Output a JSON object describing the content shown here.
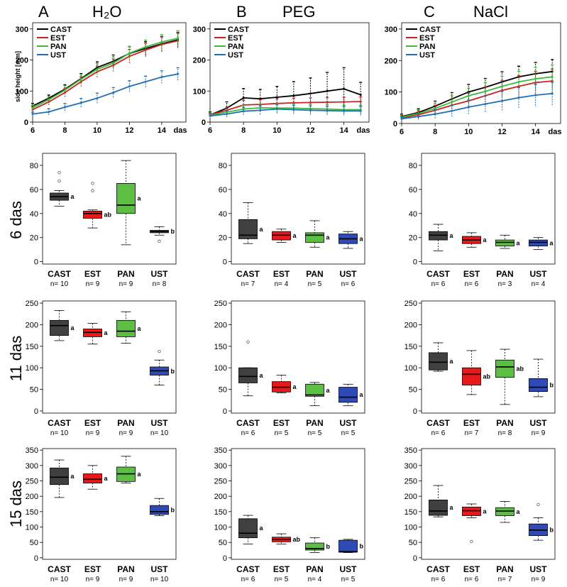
{
  "figure": {
    "columns": [
      {
        "letter": "A",
        "label": "H₂O"
      },
      {
        "letter": "B",
        "label": "PEG"
      },
      {
        "letter": "C",
        "label": "NaCl"
      }
    ],
    "rows": [
      "6 das",
      "11 das",
      "15 das"
    ]
  },
  "colors": {
    "CAST": "#000000",
    "EST": "#cc1f1f",
    "PAN": "#3cb93c",
    "UST": "#1f6fb5"
  },
  "box_colors": {
    "CAST": "#404040",
    "EST": "#e8191b",
    "PAN": "#5cbf43",
    "UST": "#2f4ab5"
  },
  "chart_data": [
    {
      "type": "line",
      "panel": "A",
      "title": "H₂O",
      "ylabel": "side height [mm]",
      "xlabel": "das",
      "x": [
        6,
        7,
        8,
        9,
        10,
        11,
        12,
        13,
        14,
        15
      ],
      "xticks": [
        "6",
        "8",
        "10",
        "12",
        "14"
      ],
      "xlim": [
        6,
        15.5
      ],
      "yticks": [
        "0",
        "100",
        "200",
        "300"
      ],
      "ylim": [
        0,
        320
      ],
      "legend": [
        "CAST",
        "EST",
        "PAN",
        "UST"
      ],
      "legend_position": "top-left",
      "series": [
        {
          "name": "CAST",
          "values": [
            52,
            77,
            106,
            140,
            176,
            196,
            221,
            237,
            252,
            265
          ],
          "err": [
            8,
            10,
            14,
            16,
            18,
            20,
            22,
            22,
            24,
            24
          ]
        },
        {
          "name": "EST",
          "values": [
            40,
            65,
            95,
            130,
            162,
            183,
            212,
            232,
            250,
            262
          ],
          "err": [
            8,
            10,
            14,
            16,
            18,
            20,
            22,
            22,
            24,
            24
          ]
        },
        {
          "name": "PAN",
          "values": [
            46,
            72,
            103,
            138,
            170,
            190,
            222,
            242,
            258,
            270
          ],
          "err": [
            8,
            10,
            14,
            16,
            18,
            20,
            22,
            22,
            24,
            24
          ]
        },
        {
          "name": "UST",
          "values": [
            26,
            33,
            48,
            62,
            77,
            95,
            115,
            130,
            145,
            155
          ],
          "err": [
            6,
            10,
            12,
            14,
            16,
            16,
            18,
            18,
            20,
            20
          ]
        }
      ]
    },
    {
      "type": "line",
      "panel": "B",
      "title": "PEG",
      "xlabel": "das",
      "x": [
        6,
        7,
        8,
        9,
        10,
        11,
        12,
        13,
        14,
        15
      ],
      "xticks": [
        "6",
        "8",
        "10",
        "12",
        "14"
      ],
      "xlim": [
        6,
        15.5
      ],
      "yticks": [
        "0",
        "100",
        "200",
        "300"
      ],
      "ylim": [
        0,
        320
      ],
      "legend": [
        "CAST",
        "EST",
        "PAN",
        "UST"
      ],
      "legend_position": "top-left",
      "series": [
        {
          "name": "CAST",
          "values": [
            23,
            45,
            78,
            75,
            80,
            85,
            92,
            100,
            107,
            88
          ],
          "err": [
            10,
            20,
            30,
            30,
            35,
            45,
            50,
            60,
            68,
            40
          ]
        },
        {
          "name": "EST",
          "values": [
            24,
            38,
            55,
            57,
            60,
            62,
            63,
            64,
            65,
            66
          ],
          "err": [
            8,
            10,
            15,
            15,
            15,
            15,
            15,
            15,
            15,
            15
          ]
        },
        {
          "name": "PAN",
          "values": [
            22,
            32,
            42,
            46,
            45,
            45,
            43,
            42,
            40,
            40
          ],
          "err": [
            8,
            10,
            12,
            12,
            14,
            14,
            14,
            14,
            14,
            14
          ]
        },
        {
          "name": "UST",
          "values": [
            20,
            26,
            35,
            38,
            42,
            40,
            38,
            37,
            36,
            36
          ],
          "err": [
            8,
            10,
            12,
            14,
            14,
            14,
            14,
            14,
            14,
            14
          ]
        }
      ]
    },
    {
      "type": "line",
      "panel": "C",
      "title": "NaCl",
      "xlabel": "das",
      "x": [
        6,
        7,
        8,
        9,
        10,
        11,
        12,
        13,
        14,
        15
      ],
      "xticks": [
        "6",
        "8",
        "10",
        "12",
        "14"
      ],
      "xlim": [
        6,
        15.5
      ],
      "yticks": [
        "0",
        "100",
        "200",
        "300"
      ],
      "ylim": [
        0,
        320
      ],
      "legend": [
        "CAST",
        "EST",
        "PAN",
        "UST"
      ],
      "legend_position": "top-left",
      "series": [
        {
          "name": "CAST",
          "values": [
            22,
            35,
            55,
            78,
            100,
            115,
            132,
            148,
            158,
            165
          ],
          "err": [
            8,
            12,
            16,
            20,
            24,
            28,
            32,
            34,
            36,
            38
          ]
        },
        {
          "name": "EST",
          "values": [
            18,
            28,
            42,
            58,
            72,
            88,
            105,
            118,
            130,
            135
          ],
          "err": [
            8,
            12,
            16,
            20,
            24,
            28,
            32,
            34,
            36,
            38
          ]
        },
        {
          "name": "PAN",
          "values": [
            20,
            32,
            48,
            68,
            88,
            102,
            118,
            132,
            142,
            148
          ],
          "err": [
            8,
            12,
            16,
            20,
            24,
            28,
            32,
            34,
            36,
            38
          ]
        },
        {
          "name": "UST",
          "values": [
            15,
            22,
            30,
            40,
            52,
            62,
            72,
            82,
            90,
            95
          ],
          "err": [
            6,
            10,
            14,
            18,
            22,
            26,
            30,
            32,
            34,
            36
          ]
        }
      ]
    },
    {
      "type": "box",
      "panel": "A",
      "row": "6 das",
      "ylim": [
        -2,
        90
      ],
      "yticks": [
        "0",
        "20",
        "40",
        "60",
        "80"
      ],
      "categories": [
        "CAST",
        "EST",
        "PAN",
        "UST"
      ],
      "n": [
        "n= 10",
        "n= 9",
        "n= 9",
        "n= 8"
      ],
      "letters": [
        "a",
        "ab",
        "a",
        "b"
      ],
      "boxes": [
        {
          "min": 46,
          "q1": 51,
          "median": 54,
          "q3": 57,
          "max": 59,
          "outliers": [
            67,
            74
          ]
        },
        {
          "min": 28,
          "q1": 36,
          "median": 40,
          "q3": 42,
          "max": 43,
          "outliers": [
            59,
            65
          ]
        },
        {
          "min": 14,
          "q1": 40,
          "median": 47,
          "q3": 65,
          "max": 84,
          "outliers": []
        },
        {
          "min": 22,
          "q1": 24,
          "median": 25,
          "q3": 26,
          "max": 29,
          "outliers": [
            17
          ]
        }
      ]
    },
    {
      "type": "box",
      "panel": "B",
      "row": "6 das",
      "ylim": [
        -2,
        90
      ],
      "yticks": [
        "0",
        "20",
        "40",
        "60",
        "80"
      ],
      "categories": [
        "CAST",
        "EST",
        "PAN",
        "UST"
      ],
      "n": [
        "n= 7",
        "n= 4",
        "n= 5",
        "n= 6"
      ],
      "letters": [
        "a",
        "a",
        "a",
        "a"
      ],
      "boxes": [
        {
          "min": 15,
          "q1": 19,
          "median": 22,
          "q3": 35,
          "max": 49,
          "outliers": []
        },
        {
          "min": 16,
          "q1": 18,
          "median": 22,
          "q3": 25,
          "max": 27,
          "outliers": []
        },
        {
          "min": 12,
          "q1": 16,
          "median": 22,
          "q3": 24,
          "max": 34,
          "outliers": []
        },
        {
          "min": 11,
          "q1": 15,
          "median": 19,
          "q3": 23,
          "max": 25,
          "outliers": []
        }
      ]
    },
    {
      "type": "box",
      "panel": "C",
      "row": "6 das",
      "ylim": [
        -2,
        90
      ],
      "yticks": [
        "0",
        "20",
        "40",
        "60",
        "80"
      ],
      "categories": [
        "CAST",
        "EST",
        "PAN",
        "UST"
      ],
      "n": [
        "n= 6",
        "n= 6",
        "n= 3",
        "n= 4"
      ],
      "letters": [
        "a",
        "a",
        "a",
        "a"
      ],
      "boxes": [
        {
          "min": 9,
          "q1": 18,
          "median": 22,
          "q3": 25,
          "max": 31,
          "outliers": []
        },
        {
          "min": 12,
          "q1": 15,
          "median": 18,
          "q3": 21,
          "max": 24,
          "outliers": []
        },
        {
          "min": 11,
          "q1": 13,
          "median": 16,
          "q3": 18,
          "max": 22,
          "outliers": []
        },
        {
          "min": 10,
          "q1": 13,
          "median": 16,
          "q3": 18,
          "max": 20,
          "outliers": []
        }
      ]
    },
    {
      "type": "box",
      "panel": "A",
      "row": "11 das",
      "ylim": [
        -5,
        255
      ],
      "yticks": [
        "0",
        "50",
        "100",
        "150",
        "200",
        "250"
      ],
      "categories": [
        "CAST",
        "EST",
        "PAN",
        "UST"
      ],
      "n": [
        "n= 10",
        "n= 9",
        "n= 9",
        "n= 10"
      ],
      "letters": [
        "a",
        "a",
        "a",
        "b"
      ],
      "boxes": [
        {
          "min": 163,
          "q1": 175,
          "median": 198,
          "q3": 210,
          "max": 233,
          "outliers": []
        },
        {
          "min": 155,
          "q1": 172,
          "median": 182,
          "q3": 190,
          "max": 203,
          "outliers": []
        },
        {
          "min": 157,
          "q1": 172,
          "median": 185,
          "q3": 210,
          "max": 230,
          "outliers": []
        },
        {
          "min": 60,
          "q1": 83,
          "median": 93,
          "q3": 102,
          "max": 118,
          "outliers": [
            138
          ]
        }
      ]
    },
    {
      "type": "box",
      "panel": "B",
      "row": "11 das",
      "ylim": [
        -5,
        255
      ],
      "yticks": [
        "0",
        "50",
        "100",
        "150",
        "200",
        "250"
      ],
      "categories": [
        "CAST",
        "EST",
        "PAN",
        "UST"
      ],
      "n": [
        "n= 6",
        "n= 5",
        "n= 5",
        "n= 5"
      ],
      "letters": [
        "a",
        "a",
        "a",
        "a"
      ],
      "boxes": [
        {
          "min": 35,
          "q1": 65,
          "median": 80,
          "q3": 100,
          "max": 100,
          "outliers": [
            160
          ]
        },
        {
          "min": 42,
          "q1": 44,
          "median": 55,
          "q3": 68,
          "max": 83,
          "outliers": []
        },
        {
          "min": 12,
          "q1": 34,
          "median": 37,
          "q3": 62,
          "max": 66,
          "outliers": []
        },
        {
          "min": 12,
          "q1": 20,
          "median": 32,
          "q3": 55,
          "max": 62,
          "outliers": []
        }
      ]
    },
    {
      "type": "box",
      "panel": "C",
      "row": "11 das",
      "ylim": [
        -5,
        255
      ],
      "yticks": [
        "0",
        "50",
        "100",
        "150",
        "200",
        "250"
      ],
      "categories": [
        "CAST",
        "EST",
        "PAN",
        "UST"
      ],
      "n": [
        "n= 6",
        "n= 7",
        "n= 8",
        "n= 9"
      ],
      "letters": [
        "a",
        "ab",
        "ab",
        "b"
      ],
      "boxes": [
        {
          "min": 92,
          "q1": 95,
          "median": 113,
          "q3": 135,
          "max": 158,
          "outliers": []
        },
        {
          "min": 38,
          "q1": 60,
          "median": 85,
          "q3": 100,
          "max": 140,
          "outliers": []
        },
        {
          "min": 15,
          "q1": 78,
          "median": 102,
          "q3": 118,
          "max": 143,
          "outliers": []
        },
        {
          "min": 33,
          "q1": 45,
          "median": 55,
          "q3": 75,
          "max": 120,
          "outliers": []
        }
      ]
    },
    {
      "type": "box",
      "panel": "A",
      "row": "15 das",
      "ylim": [
        -5,
        355
      ],
      "yticks": [
        "0",
        "50",
        "100",
        "150",
        "200",
        "250",
        "300",
        "350"
      ],
      "categories": [
        "CAST",
        "EST",
        "PAN",
        "UST"
      ],
      "n": [
        "n= 10",
        "n= 9",
        "n= 9",
        "n= 10"
      ],
      "letters": [
        "a",
        "a",
        "a",
        "b"
      ],
      "boxes": [
        {
          "min": 196,
          "q1": 238,
          "median": 262,
          "q3": 292,
          "max": 318,
          "outliers": []
        },
        {
          "min": 223,
          "q1": 243,
          "median": 255,
          "q3": 273,
          "max": 300,
          "outliers": []
        },
        {
          "min": 243,
          "q1": 248,
          "median": 273,
          "q3": 295,
          "max": 330,
          "outliers": []
        },
        {
          "min": 137,
          "q1": 141,
          "median": 150,
          "q3": 170,
          "max": 193,
          "outliers": []
        }
      ]
    },
    {
      "type": "box",
      "panel": "B",
      "row": "15 das",
      "ylim": [
        -5,
        355
      ],
      "yticks": [
        "0",
        "50",
        "100",
        "150",
        "200",
        "250",
        "300",
        "350"
      ],
      "categories": [
        "CAST",
        "EST",
        "PAN",
        "UST"
      ],
      "n": [
        "n= 6",
        "n= 5",
        "n= 4",
        "n= 5"
      ],
      "letters": [
        "a",
        "ab",
        "b",
        "b"
      ],
      "boxes": [
        {
          "min": 45,
          "q1": 65,
          "median": 80,
          "q3": 127,
          "max": 138,
          "outliers": []
        },
        {
          "min": 45,
          "q1": 52,
          "median": 60,
          "q3": 67,
          "max": 78,
          "outliers": []
        },
        {
          "min": 17,
          "q1": 25,
          "median": 30,
          "q3": 48,
          "max": 65,
          "outliers": []
        },
        {
          "min": 17,
          "q1": 18,
          "median": 20,
          "q3": 57,
          "max": 60,
          "outliers": []
        }
      ]
    },
    {
      "type": "box",
      "panel": "C",
      "row": "15 das",
      "ylim": [
        -5,
        355
      ],
      "yticks": [
        "0",
        "50",
        "100",
        "150",
        "200",
        "250",
        "300",
        "350"
      ],
      "categories": [
        "CAST",
        "EST",
        "PAN",
        "UST"
      ],
      "n": [
        "n= 6",
        "n= 6",
        "n= 7",
        "n= 9"
      ],
      "letters": [
        "a",
        "a",
        "a",
        "b"
      ],
      "boxes": [
        {
          "min": 133,
          "q1": 138,
          "median": 152,
          "q3": 188,
          "max": 235,
          "outliers": []
        },
        {
          "min": 130,
          "q1": 137,
          "median": 153,
          "q3": 165,
          "max": 175,
          "outliers": [
            53
          ]
        },
        {
          "min": 115,
          "q1": 137,
          "median": 152,
          "q3": 163,
          "max": 183,
          "outliers": []
        },
        {
          "min": 57,
          "q1": 72,
          "median": 90,
          "q3": 110,
          "max": 130,
          "outliers": [
            173
          ]
        }
      ]
    }
  ]
}
